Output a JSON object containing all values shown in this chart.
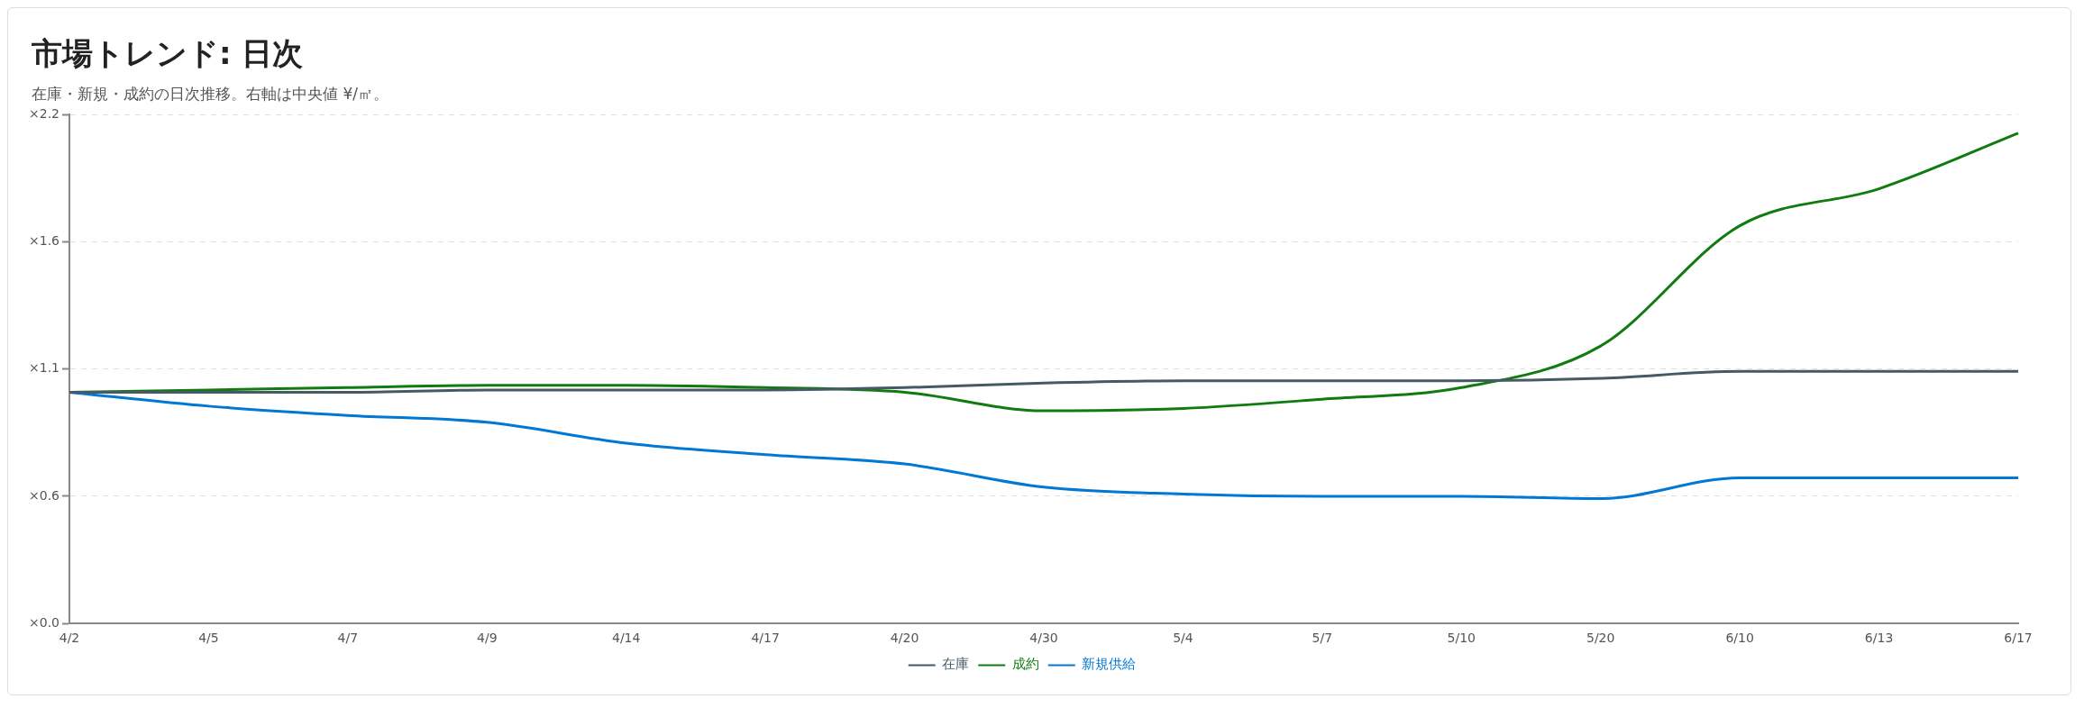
{
  "chart_data": {
    "type": "line",
    "title": "市場トレンド: 日次",
    "subtitle": "在庫・新規・成約の日次推移。右軸は中央値 ¥/㎡。",
    "categories": [
      "4/2",
      "4/5",
      "4/7",
      "4/9",
      "4/14",
      "4/17",
      "4/20",
      "4/30",
      "5/4",
      "5/7",
      "5/10",
      "5/20",
      "6/10",
      "6/13",
      "6/17"
    ],
    "series": [
      {
        "name": "在庫",
        "color": "#455a64",
        "values": [
          1.0,
          1.0,
          1.0,
          1.01,
          1.01,
          1.01,
          1.02,
          1.04,
          1.05,
          1.05,
          1.05,
          1.06,
          1.09,
          1.09,
          1.09
        ]
      },
      {
        "name": "成約",
        "color": "#107c10",
        "values": [
          1.0,
          1.01,
          1.02,
          1.03,
          1.03,
          1.02,
          1.0,
          0.92,
          0.93,
          0.97,
          1.02,
          1.2,
          1.72,
          1.88,
          2.12
        ]
      },
      {
        "name": "新規供給",
        "color": "#0078d4",
        "values": [
          1.0,
          0.94,
          0.9,
          0.87,
          0.78,
          0.73,
          0.69,
          0.59,
          0.56,
          0.55,
          0.55,
          0.54,
          0.63,
          0.63,
          0.63
        ]
      }
    ],
    "ylim": [
      0,
      2.2
    ],
    "yticks": [
      {
        "value": 0,
        "label": "×0.0"
      },
      {
        "value": 0.55,
        "label": "×0.6"
      },
      {
        "value": 1.1,
        "label": "×1.1"
      },
      {
        "value": 1.65,
        "label": "×1.6"
      },
      {
        "value": 2.2,
        "label": "×2.2"
      }
    ],
    "grid": "y",
    "legend": "bottom",
    "marker": "none",
    "line_style": "solid"
  }
}
